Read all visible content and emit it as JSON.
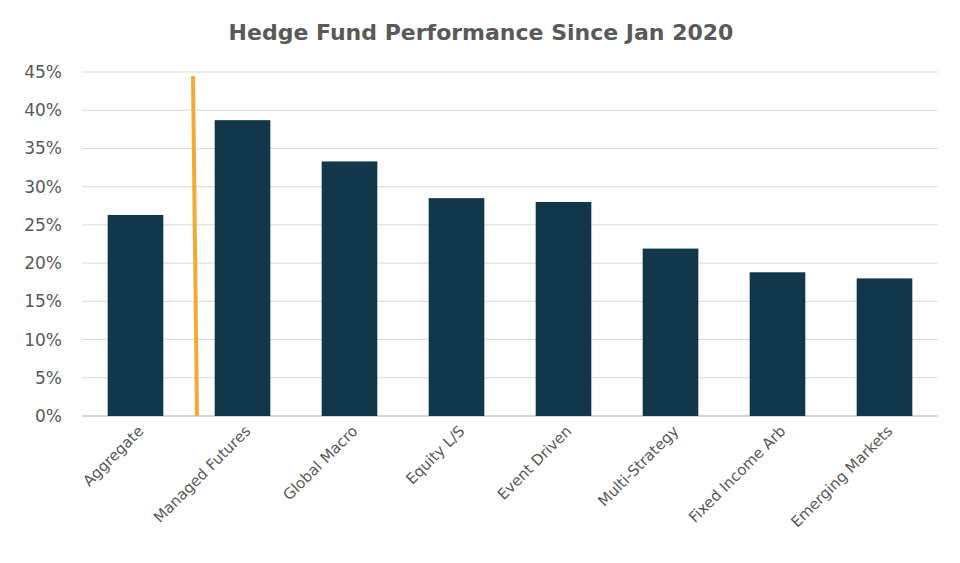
{
  "chart_data": {
    "type": "bar",
    "title": "Hedge Fund Performance Since Jan 2020",
    "categories": [
      "Aggregate",
      "Managed Futures",
      "Global Macro",
      "Equity L/S",
      "Event Driven",
      "Multi-Strategy",
      "Fixed Income Arb",
      "Emerging Markets"
    ],
    "values": [
      26.3,
      38.7,
      33.3,
      28.5,
      28.0,
      21.9,
      18.8,
      18.0
    ],
    "color": "#12374a",
    "ylim": [
      0,
      45
    ],
    "yticks": [
      {
        "value": 0,
        "label": "0%"
      },
      {
        "value": 5,
        "label": "5%"
      },
      {
        "value": 10,
        "label": "10%"
      },
      {
        "value": 15,
        "label": "15%"
      },
      {
        "value": 20,
        "label": "20%"
      },
      {
        "value": 25,
        "label": "25%"
      },
      {
        "value": 30,
        "label": "30%"
      },
      {
        "value": 35,
        "label": "35%"
      },
      {
        "value": 40,
        "label": "40%"
      },
      {
        "value": 45,
        "label": "45%"
      }
    ],
    "grid": true
  }
}
